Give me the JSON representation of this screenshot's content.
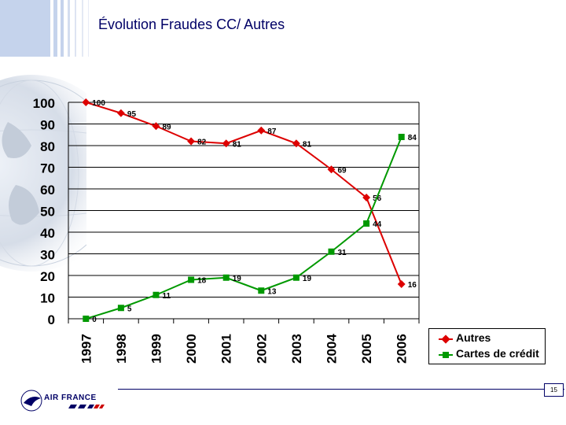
{
  "slide": {
    "title": "Évolution Fraudes CC/ Autres",
    "page_number": "15",
    "logo_text": "AIR FRANCE",
    "accent_color": "#000066"
  },
  "chart_data": {
    "type": "line",
    "categories": [
      "1997",
      "1998",
      "1999",
      "2000",
      "2001",
      "2002",
      "2003",
      "2004",
      "2005",
      "2006"
    ],
    "series": [
      {
        "name": "Autres",
        "color": "#dd0000",
        "marker": "diamond",
        "values": [
          100,
          95,
          89,
          82,
          81,
          87,
          81,
          69,
          56,
          16
        ]
      },
      {
        "name": "Cartes de crédit",
        "color": "#009900",
        "marker": "square",
        "values": [
          0,
          5,
          11,
          18,
          19,
          13,
          19,
          31,
          44,
          84
        ]
      }
    ],
    "ylim": [
      0,
      100
    ],
    "yticks": [
      "0",
      "10",
      "20",
      "30",
      "40",
      "50",
      "60",
      "70",
      "80",
      "90",
      "100"
    ],
    "grid": "horizontal",
    "legend": "bottom-right"
  }
}
